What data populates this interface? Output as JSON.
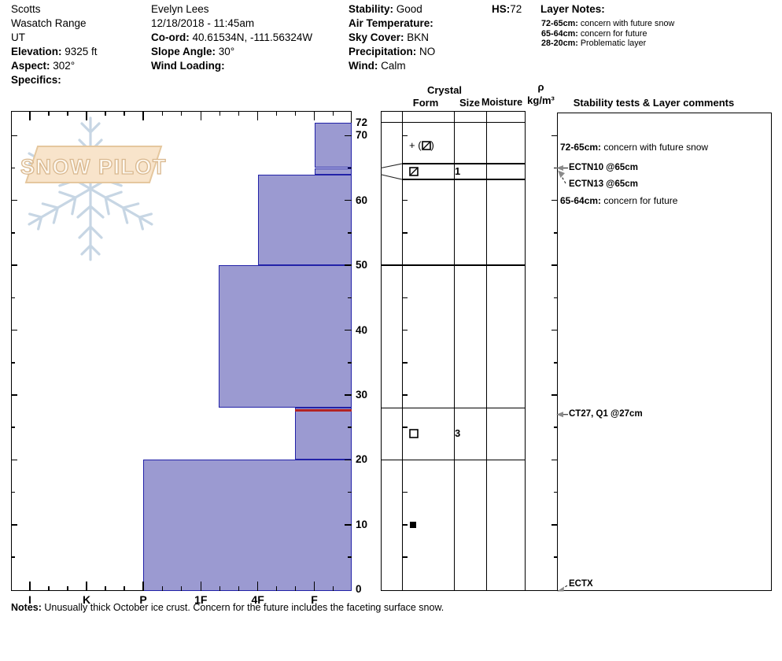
{
  "header": {
    "col1": [
      {
        "label": "",
        "value": "Scotts"
      },
      {
        "label": "",
        "value": "Wasatch Range"
      },
      {
        "label": "",
        "value": "UT"
      },
      {
        "label": "Elevation:",
        "value": " 9325 ft"
      },
      {
        "label": "Aspect:",
        "value": " 302°"
      },
      {
        "label": "Specifics:",
        "value": ""
      }
    ],
    "col2": [
      {
        "label": "",
        "value": "Evelyn Lees"
      },
      {
        "label": "",
        "value": "12/18/2018 - 11:45am"
      },
      {
        "label": "Co-ord:",
        "value": " 40.61534N, -111.56324W"
      },
      {
        "label": "Slope Angle:",
        "value": " 30°"
      },
      {
        "label": "Wind Loading:",
        "value": ""
      }
    ],
    "col3": [
      {
        "label": "Stability:",
        "value": " Good"
      },
      {
        "label": "Air Temperature:",
        "value": ""
      },
      {
        "label": "Sky Cover:",
        "value": " BKN"
      },
      {
        "label": "Precipitation:",
        "value": " NO"
      },
      {
        "label": "Wind:",
        "value": "  Calm"
      }
    ],
    "hs": {
      "label": "HS:",
      "value": "72"
    },
    "layer_notes": {
      "title": "Layer Notes:",
      "items": [
        {
          "label": "72-65cm:",
          "value": " concern with future snow"
        },
        {
          "label": "65-64cm:",
          "value": " concern for future"
        },
        {
          "label": "28-20cm:",
          "value": " Problematic layer"
        }
      ]
    }
  },
  "watermark": {
    "text": "SNOW PILOT"
  },
  "chart_data": {
    "type": "snow-profile-histogram",
    "title": "Snow pit hardness profile",
    "depth_axis": {
      "unit": "cm",
      "labels": [
        72,
        70,
        60,
        50,
        40,
        30,
        20,
        10,
        0
      ],
      "minor_step_cm": 5,
      "major_step_cm": 10,
      "surface_depth_cm": 72
    },
    "hardness_axis": {
      "categories": [
        "I",
        "K",
        "P",
        "1F",
        "4F",
        "F"
      ]
    },
    "hardness_scale": {
      "I": 38,
      "K": 110,
      "P": 182,
      "1F": 255.3,
      "4F": 327.7,
      "F": 399.5,
      "1F+": 278,
      "F-": 375
    },
    "layers": [
      {
        "top_cm": 72,
        "bottom_cm": 65,
        "hardness": "F"
      },
      {
        "top_cm": 65,
        "bottom_cm": 64,
        "hardness": "F"
      },
      {
        "top_cm": 64,
        "bottom_cm": 50,
        "hardness": "4F"
      },
      {
        "top_cm": 50,
        "bottom_cm": 28,
        "hardness": "1F+"
      },
      {
        "top_cm": 28,
        "bottom_cm": 20,
        "hardness": "F-",
        "problematic": true
      },
      {
        "top_cm": 20,
        "bottom_cm": 0,
        "hardness": "P"
      }
    ],
    "bar_color": "#9b9ad1",
    "bar_border": "#2222a8",
    "problem_line_color": "#b22222"
  },
  "profile_table": {
    "headers": {
      "crystal": "Crystal",
      "form": "Form",
      "size": "Size",
      "moisture": "Moisture",
      "rho": "ρ",
      "rho_unit": "kg/m³",
      "comments": "Stability tests & Layer comments"
    },
    "rows": [
      {
        "top_cm": 72,
        "bottom_cm": 65,
        "form_symbol": "plus-paren-slashed-square",
        "size": "",
        "moisture": ""
      },
      {
        "top_cm": 65,
        "bottom_cm": 64,
        "form_symbol": "slashed-square",
        "size": "1",
        "moisture": "",
        "expanded": true
      },
      {
        "top_cm": 64,
        "bottom_cm": 50,
        "form_symbol": "",
        "size": "",
        "moisture": ""
      },
      {
        "top_cm": 50,
        "bottom_cm": 28,
        "form_symbol": "",
        "size": "",
        "moisture": ""
      },
      {
        "top_cm": 28,
        "bottom_cm": 20,
        "form_symbol": "open-square",
        "size": "3",
        "moisture": ""
      },
      {
        "top_cm": 20,
        "bottom_cm": 0,
        "form_symbol": "filled-square",
        "size": "",
        "moisture": ""
      }
    ],
    "comments": [
      {
        "at_cm": 68.2,
        "label": "72-65cm:",
        "text": " concern with future snow",
        "type": "note"
      },
      {
        "at_cm": 65,
        "text": "ECTN10 @65cm",
        "type": "test",
        "arrow": "left"
      },
      {
        "at_cm": 62.4,
        "text": "ECTN13 @65cm",
        "type": "test",
        "arrow": "dashed-up"
      },
      {
        "at_cm": 60,
        "label": "65-64cm:",
        "text": " concern for future",
        "type": "note"
      },
      {
        "at_cm": 27,
        "text": "CT27, Q1 @27cm",
        "type": "test",
        "arrow": "left"
      },
      {
        "at_cm": 0.8,
        "text": "ECTX",
        "type": "test",
        "arrow": "dashed-down"
      }
    ]
  },
  "notes": {
    "label": "Notes:",
    "text": "  Unusually thick October ice crust.  Concern for the future includes the faceting surface snow."
  }
}
